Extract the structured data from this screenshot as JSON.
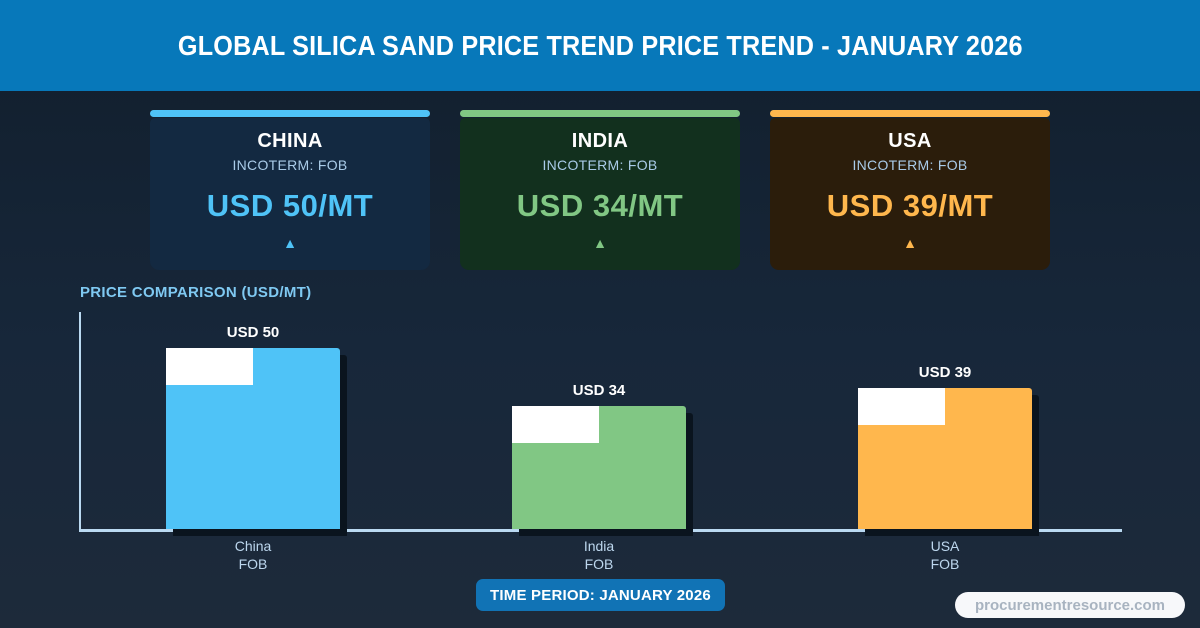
{
  "header": {
    "title": "GLOBAL SILICA SAND PRICE TREND PRICE TREND - JANUARY 2026",
    "bg_color": "#0778BA"
  },
  "cards": [
    {
      "country": "CHINA",
      "incoterm_label": "INCOTERM: FOB",
      "price": "USD 50/MT",
      "trend": "up",
      "trend_icon": "▲",
      "accent_color": "#4FC3F7",
      "bg_color": "#132941"
    },
    {
      "country": "INDIA",
      "incoterm_label": "INCOTERM: FOB",
      "price": "USD 34/MT",
      "trend": "up",
      "trend_icon": "▲",
      "accent_color": "#81C784",
      "bg_color": "#12301E"
    },
    {
      "country": "USA",
      "incoterm_label": "INCOTERM: FOB",
      "price": "USD 39/MT",
      "trend": "up",
      "trend_icon": "▲",
      "accent_color": "#FFB74D",
      "bg_color": "#2B1D0B"
    }
  ],
  "chart_data": {
    "type": "bar",
    "title": "PRICE COMPARISON (USD/MT)",
    "categories": [
      "China",
      "India",
      "USA"
    ],
    "incoterms": [
      "FOB",
      "FOB",
      "FOB"
    ],
    "values": [
      50,
      34,
      39
    ],
    "value_labels": [
      "USD 50",
      "USD 34",
      "USD 39"
    ],
    "colors": [
      "#4FC3F7",
      "#81C784",
      "#FFB74D"
    ],
    "xlabel": "",
    "ylabel": "USD/MT",
    "ylim": [
      0,
      60
    ],
    "grid": false,
    "legend": false,
    "axis_color": "#BAD9F1"
  },
  "footer": {
    "time_period": "TIME PERIOD: JANUARY 2026",
    "watermark": "procurementresource.com"
  }
}
